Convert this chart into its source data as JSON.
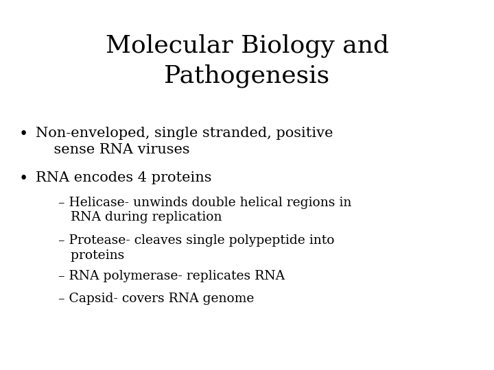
{
  "title": "Molecular Biology and\nPathogenesis",
  "background_color": "#ffffff",
  "title_fontsize": 26,
  "title_color": "#000000",
  "title_font": "DejaVu Serif",
  "bullet_fontsize": 15,
  "sub_fontsize": 13.5,
  "bullet_color": "#000000",
  "bullet1_line1": "Non-enveloped, single stranded, positive",
  "bullet1_line2": "    sense RNA viruses",
  "bullet2": "RNA encodes 4 proteins",
  "subbullet1_line1": "– Helicase- unwinds double helical regions in",
  "subbullet1_line2": "   RNA during replication",
  "subbullet2_line1": "– Protease- cleaves single polypeptide into",
  "subbullet2_line2": "   proteins",
  "subbullet3": "– RNA polymerase- replicates RNA",
  "subbullet4": "– Capsid- covers RNA genome"
}
